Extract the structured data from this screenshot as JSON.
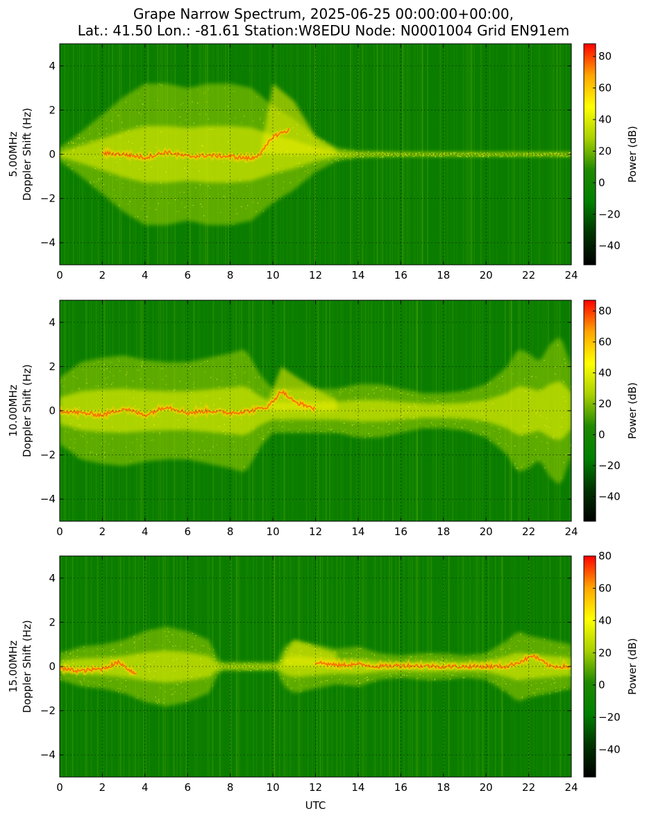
{
  "figure": {
    "title_line1": "Grape Narrow Spectrum, 2025-06-25 00:00:00+00:00,",
    "title_line2": "Lat.: 41.50 Lon.: -81.61 Station:W8EDU Node: N0001004 Grid EN91em",
    "xlabel": "UTC",
    "colorbar_label": "Power (dB)",
    "colormap": [
      "#000000",
      "#003300",
      "#008000",
      "#1f8a00",
      "#a8d000",
      "#ffff00",
      "#ffa500",
      "#ff0000"
    ]
  },
  "chart_data": [
    {
      "type": "heatmap",
      "frequency_label": "5.00MHz",
      "ylabel": "Doppler Shift (Hz)",
      "xlim": [
        0,
        24
      ],
      "ylim": [
        -5,
        5
      ],
      "x_ticks": [
        "0",
        "2",
        "4",
        "6",
        "8",
        "10",
        "12",
        "14",
        "16",
        "18",
        "20",
        "22",
        "24"
      ],
      "y_ticks": [
        "4",
        "2",
        "0",
        "−2",
        "−4"
      ],
      "grid": true,
      "colorbar": {
        "label": "Power (dB)",
        "range": [
          -52,
          88
        ],
        "ticks": [
          80,
          60,
          40,
          20,
          0,
          -20,
          -40
        ]
      },
      "carrier_trace": [
        [
          0,
          0
        ],
        [
          1,
          -0.05
        ],
        [
          2,
          0.05
        ],
        [
          3,
          0.0
        ],
        [
          4,
          -0.15
        ],
        [
          5,
          0.1
        ],
        [
          6,
          -0.1
        ],
        [
          7,
          -0.05
        ],
        [
          8,
          -0.1
        ],
        [
          9,
          -0.2
        ],
        [
          9.5,
          0.1
        ],
        [
          10,
          0.8
        ],
        [
          10.5,
          1.0
        ],
        [
          11,
          1.2
        ]
      ],
      "strong_segments": [
        [
          2,
          10.8
        ]
      ],
      "spread_envelope": [
        [
          0,
          0.3
        ],
        [
          1,
          1
        ],
        [
          2,
          1.8
        ],
        [
          3,
          2.6
        ],
        [
          4,
          3.2
        ],
        [
          5,
          3.2
        ],
        [
          6,
          3.0
        ],
        [
          7,
          3.2
        ],
        [
          8,
          3.2
        ],
        [
          9,
          3
        ],
        [
          10,
          2.2
        ],
        [
          11,
          1.6
        ],
        [
          12,
          0.8
        ],
        [
          13,
          0.3
        ],
        [
          14,
          0.15
        ],
        [
          16,
          0.1
        ],
        [
          18,
          0.1
        ],
        [
          20,
          0.1
        ],
        [
          22,
          0.1
        ],
        [
          24,
          0.1
        ]
      ],
      "upper_lobe": [
        [
          9.5,
          0.5
        ],
        [
          10,
          3.2
        ],
        [
          11,
          2.4
        ],
        [
          12,
          0.8
        ],
        [
          13,
          0.2
        ]
      ]
    },
    {
      "type": "heatmap",
      "frequency_label": "10.00MHz",
      "ylabel": "Doppler Shift (Hz)",
      "xlim": [
        0,
        24
      ],
      "ylim": [
        -5,
        5
      ],
      "x_ticks": [
        "0",
        "2",
        "4",
        "6",
        "8",
        "10",
        "12",
        "14",
        "16",
        "18",
        "20",
        "22",
        "24"
      ],
      "y_ticks": [
        "4",
        "2",
        "0",
        "−2",
        "−4"
      ],
      "grid": true,
      "colorbar": {
        "label": "Power (dB)",
        "range": [
          -56,
          87
        ],
        "ticks": [
          80,
          60,
          40,
          20,
          0,
          -20,
          -40
        ]
      },
      "carrier_trace": [
        [
          0,
          0
        ],
        [
          1,
          -0.1
        ],
        [
          2,
          -0.2
        ],
        [
          3,
          0.1
        ],
        [
          4,
          -0.2
        ],
        [
          5,
          0.2
        ],
        [
          6,
          -0.1
        ],
        [
          7,
          0.0
        ],
        [
          8,
          -0.1
        ],
        [
          9,
          0.0
        ],
        [
          9.8,
          0.2
        ],
        [
          10.4,
          0.9
        ],
        [
          11,
          0.4
        ],
        [
          12,
          0.1
        ],
        [
          13,
          0.05
        ],
        [
          14,
          0.0
        ],
        [
          16,
          0.0
        ],
        [
          18,
          0.0
        ],
        [
          20,
          0.0
        ],
        [
          22,
          0.0
        ],
        [
          24,
          0.0
        ]
      ],
      "strong_segments": [
        [
          0,
          12
        ]
      ],
      "spread_envelope": [
        [
          0,
          1.5
        ],
        [
          1,
          2.2
        ],
        [
          2,
          2.4
        ],
        [
          3,
          2.5
        ],
        [
          4,
          2.3
        ],
        [
          5,
          2.2
        ],
        [
          6,
          2.2
        ],
        [
          7,
          2.4
        ],
        [
          8,
          2.6
        ],
        [
          8.7,
          2.8
        ],
        [
          9.5,
          1.5
        ],
        [
          10,
          1.0
        ],
        [
          11,
          1.0
        ],
        [
          12,
          1.0
        ],
        [
          13,
          1.0
        ],
        [
          14,
          1.2
        ],
        [
          15,
          1.2
        ],
        [
          16,
          1.0
        ],
        [
          17,
          0.8
        ],
        [
          18,
          0.8
        ],
        [
          19,
          0.9
        ],
        [
          20,
          1.2
        ],
        [
          21,
          2.0
        ],
        [
          21.5,
          2.8
        ],
        [
          22,
          2.6
        ],
        [
          22.5,
          2.2
        ],
        [
          23,
          3.0
        ],
        [
          23.5,
          3.4
        ],
        [
          24,
          2.0
        ]
      ],
      "upper_lobe": [
        [
          9.8,
          0.5
        ],
        [
          10.4,
          2.0
        ],
        [
          11,
          1.6
        ],
        [
          12,
          1.0
        ],
        [
          13,
          0.5
        ]
      ]
    },
    {
      "type": "heatmap",
      "frequency_label": "15.00MHz",
      "ylabel": "Doppler Shift (Hz)",
      "xlabel": "UTC",
      "xlim": [
        0,
        24
      ],
      "ylim": [
        -5,
        5
      ],
      "x_ticks": [
        "0",
        "2",
        "4",
        "6",
        "8",
        "10",
        "12",
        "14",
        "16",
        "18",
        "20",
        "22",
        "24"
      ],
      "y_ticks": [
        "4",
        "2",
        "0",
        "−2",
        "−4"
      ],
      "grid": true,
      "colorbar": {
        "label": "Power (dB)",
        "range": [
          -57,
          80
        ],
        "ticks": [
          80,
          60,
          40,
          20,
          0,
          -20,
          -40
        ]
      },
      "carrier_trace": [
        [
          0,
          -0.1
        ],
        [
          1,
          -0.2
        ],
        [
          2,
          -0.1
        ],
        [
          2.8,
          0.2
        ],
        [
          3.2,
          -0.1
        ],
        [
          3.5,
          -0.3
        ],
        [
          12,
          0.2
        ],
        [
          13,
          0.05
        ],
        [
          14,
          0.1
        ],
        [
          15,
          0.0
        ],
        [
          16,
          0.05
        ],
        [
          18,
          0.0
        ],
        [
          20,
          0.0
        ],
        [
          21,
          0.0
        ],
        [
          21.8,
          0.3
        ],
        [
          22.2,
          0.5
        ],
        [
          23,
          0.0
        ],
        [
          24,
          0.0
        ]
      ],
      "strong_segments": [
        [
          0,
          3.6
        ],
        [
          12,
          24
        ]
      ],
      "spread_envelope": [
        [
          0,
          0.6
        ],
        [
          1,
          0.9
        ],
        [
          2,
          1.0
        ],
        [
          3,
          1.2
        ],
        [
          4,
          1.6
        ],
        [
          5,
          1.8
        ],
        [
          6,
          1.6
        ],
        [
          7,
          1.2
        ],
        [
          7.5,
          0.2
        ],
        [
          10.2,
          0.2
        ],
        [
          10.5,
          0.9
        ],
        [
          11,
          1.2
        ],
        [
          12,
          1.0
        ],
        [
          13,
          0.8
        ],
        [
          14,
          0.9
        ],
        [
          15,
          0.6
        ],
        [
          16,
          0.5
        ],
        [
          17,
          0.6
        ],
        [
          18,
          0.6
        ],
        [
          19,
          0.5
        ],
        [
          20,
          0.6
        ],
        [
          21,
          1.2
        ],
        [
          21.5,
          1.6
        ],
        [
          22,
          1.4
        ],
        [
          23,
          1.2
        ],
        [
          24,
          1.0
        ]
      ],
      "upper_lobe": [
        [
          10.5,
          0.5
        ],
        [
          11,
          1.2
        ],
        [
          12,
          0.9
        ],
        [
          13,
          0.6
        ]
      ]
    }
  ]
}
